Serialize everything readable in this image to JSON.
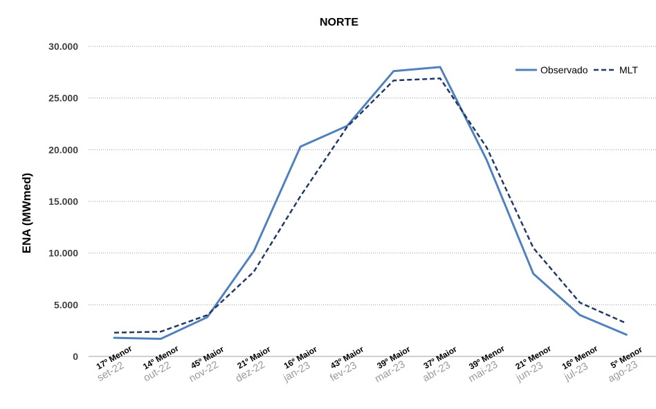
{
  "chart_data": {
    "type": "line",
    "title": "NORTE",
    "ylabel": "ENA (MWmed)",
    "xlabel": "",
    "ylim": [
      0,
      30000
    ],
    "yticks": [
      0,
      5000,
      10000,
      15000,
      20000,
      25000,
      30000
    ],
    "ytick_labels": [
      "0",
      "5.000",
      "10.000",
      "15.000",
      "20.000",
      "25.000",
      "30.000"
    ],
    "grid": true,
    "legend_position": "top-right",
    "categories": [
      "set-22",
      "out-22",
      "nov-22",
      "dez-22",
      "jan-23",
      "fev-23",
      "mar-23",
      "abr-23",
      "mai-23",
      "jun-23",
      "jul-23",
      "ago-23"
    ],
    "rank_labels": [
      "17º Menor",
      "14º Menor",
      "45º Maior",
      "21º Maior",
      "16º Maior",
      "43º Maior",
      "39º Maior",
      "37º Maior",
      "39º Menor",
      "21º Menor",
      "16º Menor",
      "5º Menor"
    ],
    "series": [
      {
        "name": "Observado",
        "style": "solid",
        "color": "#4f81bd",
        "values": [
          1800,
          1700,
          3800,
          10200,
          20300,
          22300,
          27600,
          28000,
          19000,
          8000,
          4000,
          2100
        ]
      },
      {
        "name": "MLT",
        "style": "dashed",
        "color": "#1f3864",
        "values": [
          2300,
          2400,
          4000,
          8200,
          15500,
          22200,
          26700,
          26900,
          20200,
          10500,
          5200,
          3200
        ]
      }
    ]
  }
}
